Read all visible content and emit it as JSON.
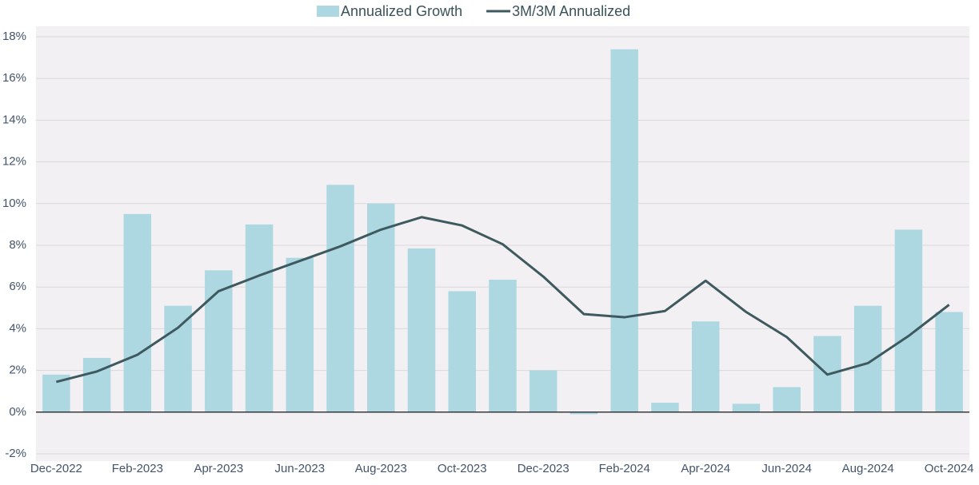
{
  "chart_data": {
    "type": "bar_line",
    "categories": [
      "Dec-2022",
      null,
      "Feb-2023",
      null,
      "Apr-2023",
      null,
      "Jun-2023",
      null,
      "Aug-2023",
      null,
      "Oct-2023",
      null,
      "Dec-2023",
      null,
      "Feb-2024",
      null,
      "Apr-2024",
      null,
      "Jun-2024",
      null,
      "Aug-2024",
      null,
      "Oct-2024"
    ],
    "series": [
      {
        "name": "Annualized Growth",
        "type": "bar",
        "color": "#add8e2",
        "values": [
          1.8,
          2.6,
          9.5,
          5.1,
          6.8,
          9.0,
          7.4,
          10.9,
          10.0,
          7.85,
          5.8,
          6.35,
          2.0,
          -0.1,
          17.4,
          0.45,
          4.35,
          0.4,
          1.2,
          3.65,
          5.1,
          8.75,
          4.8
        ]
      },
      {
        "name": "3M/3M Annualized",
        "type": "line",
        "color": "#3e5a5f",
        "values": [
          1.45,
          1.95,
          2.75,
          4.05,
          5.8,
          6.55,
          7.25,
          7.95,
          8.75,
          9.35,
          8.95,
          8.05,
          6.5,
          4.7,
          4.55,
          4.85,
          6.3,
          4.8,
          3.6,
          1.8,
          2.35,
          3.65,
          5.15
        ]
      }
    ],
    "ylim": [
      -2,
      18
    ],
    "yticks": [
      {
        "value": -2,
        "label": "-2%"
      },
      {
        "value": 0,
        "label": "0%"
      },
      {
        "value": 2,
        "label": "2%"
      },
      {
        "value": 4,
        "label": "4%"
      },
      {
        "value": 6,
        "label": "6%"
      },
      {
        "value": 8,
        "label": "8%"
      },
      {
        "value": 10,
        "label": "10%"
      },
      {
        "value": 12,
        "label": "12%"
      },
      {
        "value": 14,
        "label": "14%"
      },
      {
        "value": 16,
        "label": "16%"
      },
      {
        "value": 18,
        "label": "18%"
      }
    ],
    "grid": true,
    "legend": "top"
  }
}
